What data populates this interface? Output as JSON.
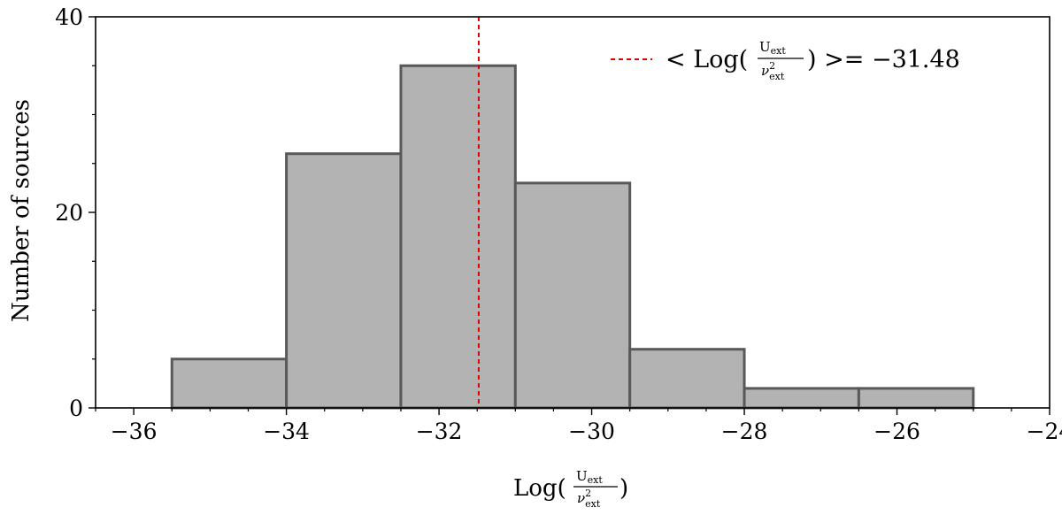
{
  "chart_data": {
    "type": "bar",
    "subtype": "histogram",
    "bin_edges": [
      -35.5,
      -34.0,
      -32.5,
      -31.0,
      -29.5,
      -28.0,
      -26.5,
      -25.0
    ],
    "values": [
      5,
      26,
      35,
      23,
      6,
      2,
      2
    ],
    "xlim": [
      -36.5,
      -24
    ],
    "ylim": [
      0,
      40
    ],
    "xticks": [
      -36,
      -34,
      -32,
      -30,
      -28,
      -26,
      -24
    ],
    "xtick_labels": [
      "−36",
      "−34",
      "−32",
      "−30",
      "−28",
      "−26",
      "−24"
    ],
    "yticks": [
      0,
      20,
      40
    ],
    "ytick_labels": [
      "0",
      "20",
      "40"
    ],
    "xlabel": {
      "prefix": "Log(",
      "numerator": "U",
      "numerator_sub": "ext",
      "denominator": "ν",
      "denominator_sup": "2",
      "denominator_sub": "ext",
      "suffix": ")"
    },
    "ylabel": "Number of sources",
    "mean_line": {
      "x": -31.48,
      "color": "#e00000",
      "style": "dashed",
      "legend": {
        "prefix": "< Log(",
        "numerator": "U",
        "numerator_sub": "ext",
        "denominator": "ν",
        "denominator_sup": "2",
        "denominator_sub": "ext",
        "suffix": ") >= −31.48"
      }
    },
    "legend_position": "top-right",
    "grid": false,
    "bar_color": "#b3b3b3",
    "bar_edge_color": "#595959"
  }
}
